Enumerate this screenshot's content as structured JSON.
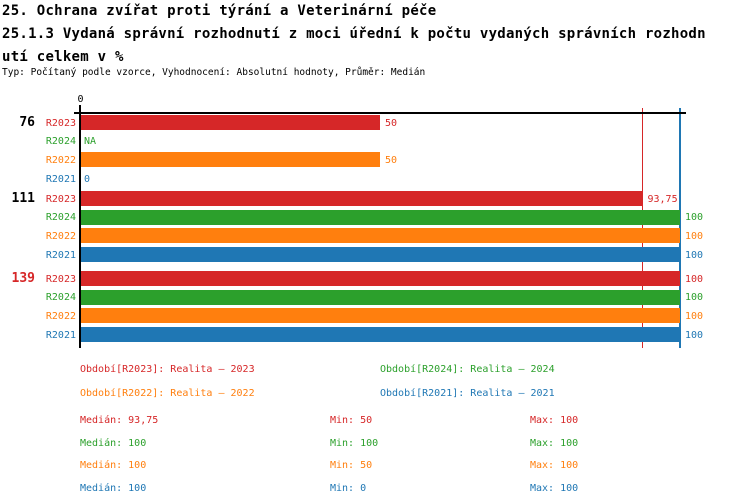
{
  "header": {
    "title_line1": "25. Ochrana zvířat proti týrání a Veterinární péče",
    "title_line2": "25.1.3 Vydaná správní rozhodnutí z moci úřední k počtu vydaných správních rozhodn",
    "title_line3": "utí celkem v %",
    "meta_line": "Typ: Počítaný podle vzorce, Vyhodnocení: Absolutní hodnoty, Průměr: Medián"
  },
  "colors": {
    "red": "#d62728",
    "green": "#2ca02c",
    "orange": "#ff7f0e",
    "blue": "#1f77b4",
    "axis": "#000000",
    "group_label_default": "#000000",
    "group_label_highlight": "#d62728"
  },
  "chart_data": {
    "type": "bar",
    "orientation": "horizontal",
    "title": "25.1.3 Vydaná správní rozhodnutí z moci úřední k počtu vydaných správních rozhodnutí celkem v %",
    "x_axis": {
      "min": 0,
      "max": 100,
      "tick_labels": [
        "0"
      ],
      "grid": false
    },
    "series_order": [
      "R2023",
      "R2024",
      "R2022",
      "R2021"
    ],
    "series_colors": {
      "R2023": "red",
      "R2024": "green",
      "R2022": "orange",
      "R2021": "blue"
    },
    "groups": [
      {
        "label": "76",
        "label_color_key": "group_label_default",
        "bars": [
          {
            "series": "R2023",
            "value": 50,
            "display": "50"
          },
          {
            "series": "R2024",
            "value": null,
            "display": "NA"
          },
          {
            "series": "R2022",
            "value": 50,
            "display": "50"
          },
          {
            "series": "R2021",
            "value": 0,
            "display": "0"
          }
        ]
      },
      {
        "label": "111",
        "label_color_key": "group_label_default",
        "bars": [
          {
            "series": "R2023",
            "value": 93.75,
            "display": "93,75"
          },
          {
            "series": "R2024",
            "value": 100,
            "display": "100"
          },
          {
            "series": "R2022",
            "value": 100,
            "display": "100"
          },
          {
            "series": "R2021",
            "value": 100,
            "display": "100"
          }
        ]
      },
      {
        "label": "139",
        "label_color_key": "group_label_highlight",
        "bars": [
          {
            "series": "R2023",
            "value": 100,
            "display": "100"
          },
          {
            "series": "R2024",
            "value": 100,
            "display": "100"
          },
          {
            "series": "R2022",
            "value": 100,
            "display": "100"
          },
          {
            "series": "R2021",
            "value": 100,
            "display": "100"
          }
        ]
      }
    ],
    "median_lines": [
      {
        "series": "R2023",
        "value": 93.75,
        "color_key": "red"
      },
      {
        "series": "R2024",
        "value": 100,
        "color_key": "green"
      },
      {
        "series": "R2022",
        "value": 100,
        "color_key": "orange"
      },
      {
        "series": "R2021",
        "value": 100,
        "color_key": "blue"
      }
    ]
  },
  "legend": {
    "items": [
      {
        "label": "Období[R2023]: Realita – 2023",
        "color_key": "red"
      },
      {
        "label": "Období[R2024]: Realita – 2024",
        "color_key": "green"
      },
      {
        "label": "Období[R2022]: Realita – 2022",
        "color_key": "orange"
      },
      {
        "label": "Období[R2021]: Realita – 2021",
        "color_key": "blue"
      }
    ]
  },
  "stats": {
    "rows": [
      {
        "series": "R2023",
        "color_key": "red",
        "median": 93.75,
        "min": 50,
        "max": 100,
        "median_text": "Medián: 93,75",
        "min_text": "Min: 50",
        "max_text": "Max: 100"
      },
      {
        "series": "R2024",
        "color_key": "green",
        "median": 100,
        "min": 100,
        "max": 100,
        "median_text": "Medián: 100",
        "min_text": "Min: 100",
        "max_text": "Max: 100"
      },
      {
        "series": "R2022",
        "color_key": "orange",
        "median": 100,
        "min": 50,
        "max": 100,
        "median_text": "Medián: 100",
        "min_text": "Min: 50",
        "max_text": "Max: 100"
      },
      {
        "series": "R2021",
        "color_key": "blue",
        "median": 100,
        "min": 0,
        "max": 100,
        "median_text": "Medián: 100",
        "min_text": "Min: 0",
        "max_text": "Max: 100"
      }
    ]
  }
}
